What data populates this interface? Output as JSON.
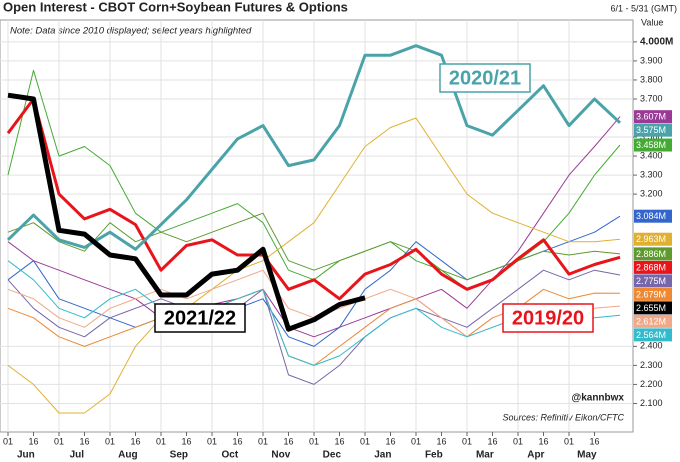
{
  "chart_data": {
    "type": "line",
    "title": "Open Interest - CBOT Corn+Soybean Futures & Options",
    "subtitle": "6/1 - 5/31 (GMT)",
    "y_axis_label": "Value",
    "note": "Note: Data since 2010 displayed; select years highlighted",
    "annotations": [
      "@kannbwx",
      "Sources: Refinitiv Eikon/CFTC"
    ],
    "categories": [
      "01",
      "16",
      "01",
      "16",
      "01",
      "16",
      "01",
      "16",
      "01",
      "16",
      "01",
      "16",
      "01",
      "16",
      "01",
      "16",
      "01",
      "16",
      "01",
      "16",
      "01",
      "16",
      "01",
      "16",
      null
    ],
    "months": [
      "Jun",
      "Jul",
      "Aug",
      "Sep",
      "Oct",
      "Nov",
      "Dec",
      "Jan",
      "Feb",
      "Mar",
      "Apr",
      "May"
    ],
    "ylim": [
      1.95,
      4.115
    ],
    "yticks": [
      {
        "value": 4.0,
        "label": "4.000M"
      },
      {
        "value": 3.9,
        "label": "3.900"
      },
      {
        "value": 3.8,
        "label": "3.800"
      },
      {
        "value": 3.7,
        "label": "3.700"
      },
      {
        "value": 3.5,
        "label": "3.500"
      },
      {
        "value": 3.4,
        "label": "3.400"
      },
      {
        "value": 3.3,
        "label": "3.300"
      },
      {
        "value": 3.2,
        "label": "3.200"
      },
      {
        "value": 2.4,
        "label": "2.400"
      },
      {
        "value": 2.3,
        "label": "2.300"
      },
      {
        "value": 2.2,
        "label": "2.200"
      },
      {
        "value": 2.1,
        "label": "2.100"
      }
    ],
    "grid": true,
    "series": [
      {
        "color": "#9b3a96",
        "width": 1,
        "values": [
          2.95,
          2.85,
          2.8,
          2.75,
          2.7,
          2.65,
          2.55,
          2.6,
          2.62,
          2.65,
          2.7,
          2.5,
          2.45,
          2.5,
          2.55,
          2.6,
          2.65,
          2.7,
          2.6,
          2.75,
          2.9,
          3.1,
          3.3,
          3.45,
          3.607
        ],
        "value_labels": [
          null,
          null,
          null,
          null,
          null,
          null,
          null,
          null,
          null,
          null,
          null,
          null,
          null,
          null,
          null,
          null,
          null,
          null,
          null,
          null,
          null,
          null,
          null,
          null,
          "3.607M"
        ]
      },
      {
        "color": "#44aa33",
        "width": 1,
        "values": [
          3.3,
          3.85,
          3.4,
          3.45,
          3.35,
          3.1,
          3.0,
          3.05,
          3.1,
          3.15,
          3.05,
          2.8,
          2.75,
          2.85,
          2.9,
          2.95,
          2.85,
          2.8,
          2.7,
          2.75,
          2.85,
          2.95,
          3.1,
          3.3,
          3.458
        ],
        "value_labels": [
          null,
          null,
          null,
          null,
          null,
          null,
          null,
          null,
          null,
          null,
          null,
          null,
          null,
          null,
          null,
          null,
          null,
          null,
          null,
          null,
          null,
          null,
          null,
          null,
          "3.458M"
        ]
      },
      {
        "color": "#3366cc",
        "width": 1,
        "values": [
          2.75,
          2.85,
          2.65,
          2.6,
          2.55,
          2.5,
          2.55,
          2.5,
          2.55,
          2.6,
          2.65,
          2.45,
          2.4,
          2.5,
          2.7,
          2.8,
          2.95,
          2.85,
          2.75,
          2.8,
          2.85,
          2.9,
          2.95,
          3.0,
          3.084
        ],
        "value_labels": [
          null,
          null,
          null,
          null,
          null,
          null,
          null,
          null,
          null,
          null,
          null,
          null,
          null,
          null,
          null,
          null,
          null,
          null,
          null,
          null,
          null,
          null,
          null,
          null,
          "3.084M"
        ]
      },
      {
        "color": "#e0b030",
        "width": 1,
        "values": [
          2.3,
          2.2,
          2.05,
          2.05,
          2.15,
          2.4,
          2.55,
          2.6,
          2.7,
          2.8,
          2.85,
          2.95,
          3.05,
          3.25,
          3.45,
          3.55,
          3.6,
          3.4,
          3.2,
          3.1,
          3.05,
          3.0,
          2.95,
          2.95,
          2.963
        ],
        "value_labels": [
          null,
          null,
          null,
          null,
          null,
          null,
          null,
          null,
          null,
          null,
          null,
          null,
          null,
          null,
          null,
          null,
          null,
          null,
          null,
          null,
          null,
          null,
          null,
          null,
          "2.963M"
        ]
      },
      {
        "color": "#5f9a2e",
        "width": 1,
        "values": [
          3.0,
          3.05,
          2.95,
          2.9,
          3.05,
          2.95,
          3.0,
          2.95,
          3.0,
          3.05,
          3.1,
          2.85,
          2.8,
          2.85,
          2.9,
          2.95,
          2.9,
          2.8,
          2.75,
          2.8,
          2.85,
          2.9,
          2.88,
          2.9,
          2.886
        ],
        "value_labels": [
          null,
          null,
          null,
          null,
          null,
          null,
          null,
          null,
          null,
          null,
          null,
          null,
          null,
          null,
          null,
          null,
          null,
          null,
          null,
          null,
          null,
          null,
          null,
          null,
          "2.886M"
        ]
      },
      {
        "color": "#7766aa",
        "width": 1,
        "values": [
          2.75,
          2.6,
          2.5,
          2.45,
          2.55,
          2.6,
          2.65,
          2.6,
          2.55,
          2.6,
          2.7,
          2.25,
          2.2,
          2.3,
          2.45,
          2.55,
          2.6,
          2.55,
          2.5,
          2.6,
          2.7,
          2.8,
          2.75,
          2.8,
          2.775
        ],
        "value_labels": [
          null,
          null,
          null,
          null,
          null,
          null,
          null,
          null,
          null,
          null,
          null,
          null,
          null,
          null,
          null,
          null,
          null,
          null,
          null,
          null,
          null,
          null,
          null,
          null,
          "2.775M"
        ]
      },
      {
        "color": "#ee8833",
        "width": 1,
        "values": [
          2.6,
          2.55,
          2.45,
          2.4,
          2.45,
          2.5,
          2.55,
          2.55,
          2.6,
          2.65,
          2.7,
          2.35,
          2.3,
          2.4,
          2.5,
          2.6,
          2.65,
          2.55,
          2.45,
          2.55,
          2.6,
          2.7,
          2.65,
          2.68,
          2.679
        ],
        "value_labels": [
          null,
          null,
          null,
          null,
          null,
          null,
          null,
          null,
          null,
          null,
          null,
          null,
          null,
          null,
          null,
          null,
          null,
          null,
          null,
          null,
          null,
          null,
          null,
          null,
          "2.679M"
        ]
      },
      {
        "color": "#f0a888",
        "width": 1,
        "values": [
          2.7,
          2.65,
          2.55,
          2.5,
          2.6,
          2.65,
          2.7,
          2.65,
          2.7,
          2.75,
          2.8,
          2.6,
          2.55,
          2.6,
          2.65,
          2.7,
          2.65,
          2.55,
          2.45,
          2.5,
          2.55,
          2.6,
          2.58,
          2.6,
          2.612
        ],
        "value_labels": [
          null,
          null,
          null,
          null,
          null,
          null,
          null,
          null,
          null,
          null,
          null,
          null,
          null,
          null,
          null,
          null,
          null,
          null,
          null,
          null,
          null,
          null,
          null,
          null,
          "2.612M"
        ]
      },
      {
        "color": "#33bbcc",
        "width": 1,
        "values": [
          2.85,
          2.75,
          2.6,
          2.55,
          2.65,
          2.7,
          2.6,
          2.55,
          2.6,
          2.65,
          2.7,
          2.35,
          2.3,
          2.35,
          2.45,
          2.55,
          2.6,
          2.5,
          2.45,
          2.5,
          2.55,
          2.55,
          2.52,
          2.55,
          2.564
        ],
        "value_labels": [
          null,
          null,
          null,
          null,
          null,
          null,
          null,
          null,
          null,
          null,
          null,
          null,
          null,
          null,
          null,
          null,
          null,
          null,
          null,
          null,
          null,
          null,
          null,
          null,
          "2.564M"
        ]
      },
      {
        "name": "2019/20",
        "color": "#e8141a",
        "width": 3,
        "values": [
          3.52,
          3.7,
          3.2,
          3.07,
          3.12,
          3.04,
          2.8,
          2.93,
          2.96,
          2.88,
          2.88,
          2.7,
          2.75,
          2.65,
          2.78,
          2.83,
          2.91,
          2.78,
          2.7,
          2.75,
          2.86,
          2.96,
          2.78,
          2.83,
          2.868
        ],
        "value_labels": [
          null,
          null,
          null,
          null,
          null,
          null,
          null,
          null,
          null,
          null,
          null,
          null,
          null,
          null,
          null,
          null,
          null,
          null,
          null,
          null,
          null,
          null,
          null,
          null,
          "2.868M"
        ]
      },
      {
        "name": "2020/21",
        "color": "#4aa3a8",
        "width": 3,
        "values": [
          2.96,
          3.09,
          2.96,
          2.92,
          3.0,
          2.91,
          3.04,
          3.17,
          3.33,
          3.49,
          3.56,
          3.35,
          3.38,
          3.56,
          3.93,
          3.93,
          3.98,
          3.93,
          3.56,
          3.51,
          3.64,
          3.77,
          3.56,
          3.7,
          3.575
        ],
        "value_labels": [
          null,
          null,
          null,
          null,
          null,
          null,
          null,
          null,
          null,
          null,
          null,
          null,
          null,
          null,
          null,
          null,
          null,
          null,
          null,
          null,
          null,
          null,
          null,
          null,
          "3.575M"
        ]
      },
      {
        "name": "2021/22",
        "color": "#000000",
        "width": 5,
        "values": [
          3.72,
          3.7,
          3.01,
          2.99,
          2.88,
          2.86,
          2.67,
          2.67,
          2.78,
          2.8,
          2.91,
          2.49,
          2.54,
          2.62,
          2.655,
          null,
          null,
          null,
          null,
          null,
          null,
          null,
          null,
          null,
          null
        ],
        "value_labels": [
          null,
          null,
          null,
          null,
          null,
          null,
          null,
          null,
          null,
          null,
          null,
          null,
          null,
          null,
          "2.655M",
          null,
          null,
          null,
          null,
          null,
          null,
          null,
          null,
          null,
          null
        ]
      }
    ]
  }
}
